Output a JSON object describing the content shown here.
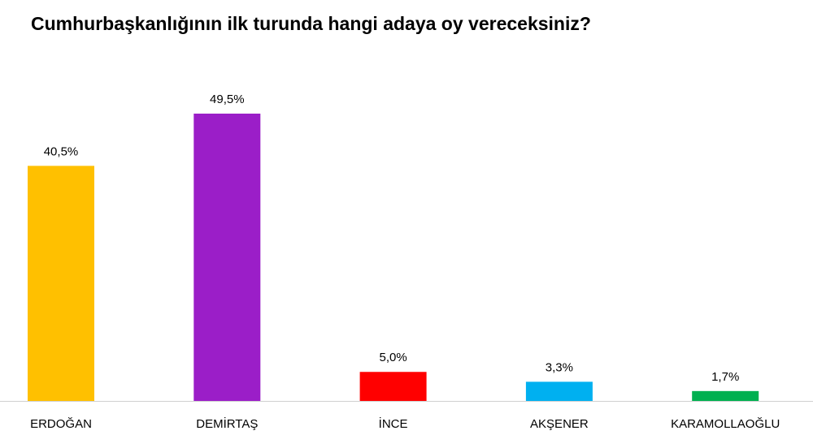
{
  "chart_data": {
    "type": "bar",
    "title": "Cumhurbaşkanlığının ilk turunda hangi adaya oy vereceksiniz?",
    "categories": [
      "ERDOĞAN",
      "DEMİRTAŞ",
      "İNCE",
      "AKŞENER",
      "KARAMOLLAOĞLU"
    ],
    "values": [
      40.5,
      49.5,
      5.0,
      3.3,
      1.7
    ],
    "value_labels": [
      "40,5%",
      "49,5%",
      "5,0%",
      "3,3%",
      "1,7%"
    ],
    "colors": [
      "#ffc000",
      "#9b1ec8",
      "#ff0000",
      "#00b0f0",
      "#00b050"
    ]
  }
}
